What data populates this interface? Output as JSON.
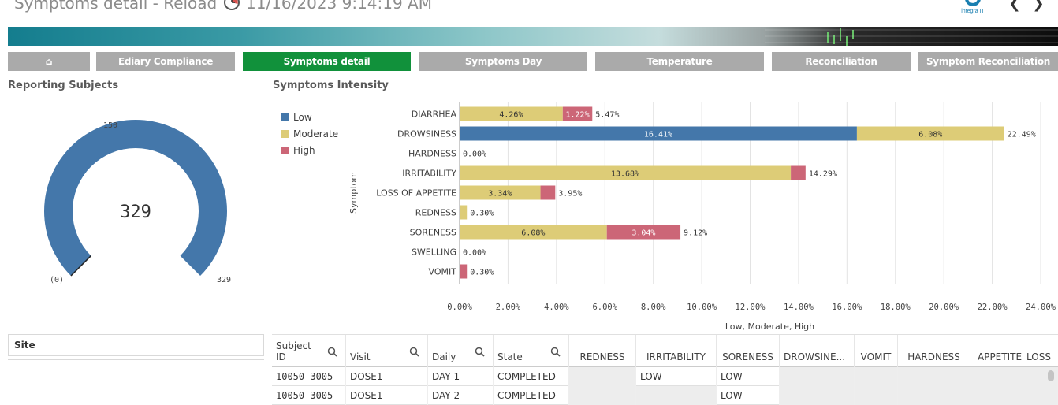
{
  "header": {
    "title": "Symptoms detail - Reload",
    "timestamp": "11/16/2023 9:14:19 AM",
    "logo_text": "integra IT",
    "back_label": "❮",
    "forward_label": "❯"
  },
  "tabs": [
    {
      "label": "⌂",
      "active": false
    },
    {
      "label": "Ediary Compliance",
      "active": false
    },
    {
      "label": "Symptoms detail",
      "active": true
    },
    {
      "label": "Symptoms Day",
      "active": false
    },
    {
      "label": "Temperature",
      "active": false
    },
    {
      "label": "Reconciliation",
      "active": false
    },
    {
      "label": "Symptom Reconciliation",
      "active": false
    }
  ],
  "gauge": {
    "title": "Reporting Subjects",
    "value": "329",
    "max_label": "150",
    "min_label": "(0)",
    "end_label": "329",
    "fill_fraction": 1.0,
    "color": "#4477aa"
  },
  "chart_title": "Symptoms Intensity",
  "colors": {
    "low": "#4477aa",
    "moderate": "#ddcc77",
    "high": "#cc6677"
  },
  "chart_data": {
    "type": "bar",
    "orientation": "horizontal",
    "stacked": true,
    "title": "Symptoms Intensity",
    "xlabel": "Low, Moderate, High",
    "ylabel": "Symptom",
    "xlim": [
      0,
      24
    ],
    "xticks": [
      "0.00%",
      "2.00%",
      "4.00%",
      "6.00%",
      "8.00%",
      "10.00%",
      "12.00%",
      "14.00%",
      "16.00%",
      "18.00%",
      "20.00%",
      "22.00%",
      "24.00%"
    ],
    "legend": [
      "Low",
      "Moderate",
      "High"
    ],
    "legend_position": "top-left",
    "categories": [
      "DIARRHEA",
      "DROWSINESS",
      "HARDNESS",
      "IRRITABILITY",
      "LOSS OF APPETITE",
      "REDNESS",
      "SORENESS",
      "SWELLING",
      "VOMIT"
    ],
    "series": [
      {
        "name": "Low",
        "values": [
          0,
          16.41,
          0,
          0,
          0,
          0,
          0,
          0,
          0
        ],
        "labels": [
          "",
          "16.41%",
          "",
          "",
          "",
          "",
          "",
          "",
          ""
        ]
      },
      {
        "name": "Moderate",
        "values": [
          4.26,
          6.08,
          0,
          13.68,
          3.34,
          0.3,
          6.08,
          0,
          0
        ],
        "labels": [
          "4.26%",
          "6.08%",
          "",
          "13.68%",
          "3.34%",
          "",
          "6.08%",
          "",
          ""
        ]
      },
      {
        "name": "High",
        "values": [
          1.22,
          0,
          0,
          0.61,
          0.61,
          0,
          3.04,
          0,
          0.3
        ],
        "labels": [
          "1.22%",
          "",
          "",
          "",
          "",
          "",
          "3.04%",
          "",
          ""
        ]
      }
    ],
    "totals": [
      "5.47%",
      "22.49%",
      "0.00%",
      "14.29%",
      "3.95%",
      "0.30%",
      "9.12%",
      "0.00%",
      "0.30%"
    ],
    "grid": true
  },
  "site_filter": {
    "label": "Site"
  },
  "table": {
    "columns": [
      "Subject ID",
      "Visit",
      "Daily",
      "State",
      "REDNESS",
      "IRRITABILITY",
      "SORENESS",
      "DROWSINE...",
      "VOMIT",
      "HARDNESS",
      "APPETITE_LOSS"
    ],
    "rows": [
      [
        "10050-3005",
        "DOSE1",
        "DAY 1",
        "COMPLETED",
        "-",
        "LOW",
        "LOW",
        "-",
        "-",
        "-",
        "-"
      ],
      [
        "10050-3005",
        "DOSE1",
        "DAY 2",
        "COMPLETED",
        "",
        "",
        "LOW",
        "",
        "",
        "",
        ""
      ]
    ]
  }
}
